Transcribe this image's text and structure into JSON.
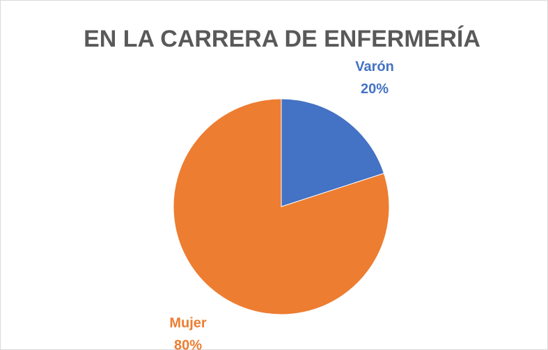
{
  "chart_data": {
    "type": "pie",
    "title": "EN LA CARRERA DE ENFERMERÍA",
    "categories": [
      "Varón",
      "Mujer"
    ],
    "values": [
      20,
      80
    ],
    "value_labels": [
      "20%",
      "80%"
    ],
    "colors": [
      "#4472c4",
      "#ed7d31"
    ]
  }
}
